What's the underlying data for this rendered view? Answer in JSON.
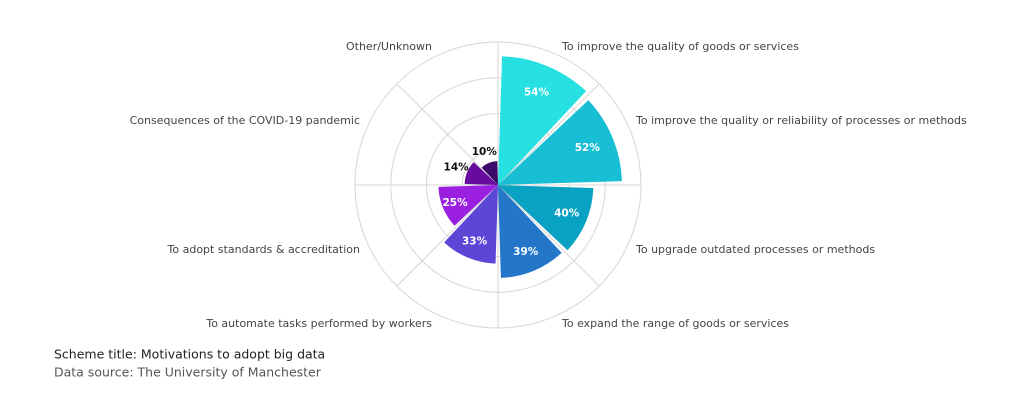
{
  "chart_data": {
    "type": "polar_area",
    "title": "Scheme title: Motivations to adopt big data",
    "source": "Data source: The University of Manchester",
    "categories": [
      "To improve the quality of goods or services",
      "To improve the quality or reliability of processes or methods",
      "To upgrade outdated processes or methods",
      "To expand the range of goods or services",
      "To automate tasks performed by workers",
      "To adopt standards & accreditation",
      "Consequences of the COVID-19 pandemic",
      "Other/Unknown"
    ],
    "values": [
      54,
      52,
      40,
      39,
      33,
      25,
      14,
      10
    ],
    "value_labels": [
      "54%",
      "52%",
      "40%",
      "39%",
      "33%",
      "25%",
      "14%",
      "10%"
    ],
    "colors": [
      "#26e0e2",
      "#18bed4",
      "#0aa2c2",
      "#2476c8",
      "#5b46d6",
      "#9a1fe0",
      "#670a9f",
      "#3b0b6b"
    ],
    "rlim": [
      0,
      60
    ],
    "rticks": [
      15,
      30,
      45,
      60
    ]
  }
}
